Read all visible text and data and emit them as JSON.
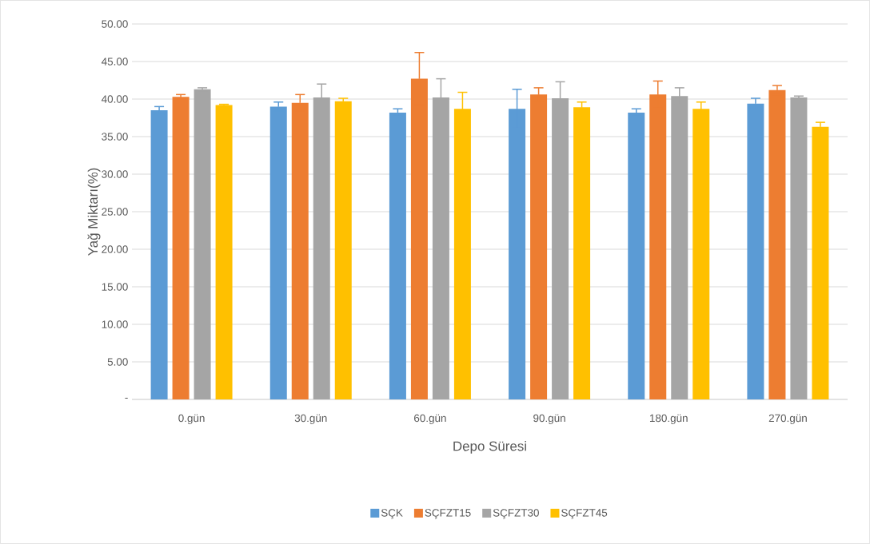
{
  "chart_data": {
    "type": "bar",
    "xlabel": "Depo Süresi",
    "ylabel": "Yağ Miktarı(%)",
    "categories": [
      "0.gün",
      "30.gün",
      "60.gün",
      "90.gün",
      "180.gün",
      "270.gün"
    ],
    "series": [
      {
        "name": "SÇK",
        "color": "#5b9bd5",
        "values": [
          38.5,
          39.0,
          38.2,
          38.7,
          38.2,
          39.4
        ],
        "errors": [
          0.5,
          0.6,
          0.5,
          2.6,
          0.5,
          0.7
        ]
      },
      {
        "name": "SÇFZT15",
        "color": "#ed7d31",
        "values": [
          40.3,
          39.5,
          42.7,
          40.6,
          40.6,
          41.2
        ],
        "errors": [
          0.3,
          1.1,
          3.5,
          0.9,
          1.8,
          0.6
        ]
      },
      {
        "name": "SÇFZT30",
        "color": "#a5a5a5",
        "values": [
          41.3,
          40.2,
          40.2,
          40.1,
          40.4,
          40.2
        ],
        "errors": [
          0.2,
          1.8,
          2.5,
          2.2,
          1.1,
          0.2
        ]
      },
      {
        "name": "SÇFZT45",
        "color": "#ffc000",
        "values": [
          39.2,
          39.7,
          38.7,
          38.9,
          38.7,
          36.3
        ],
        "errors": [
          0.1,
          0.4,
          2.2,
          0.7,
          0.9,
          0.6
        ]
      }
    ],
    "ylim": [
      0,
      50
    ],
    "yticks": [
      {
        "value": 0,
        "label": "-"
      },
      {
        "value": 5,
        "label": "5.00"
      },
      {
        "value": 10,
        "label": "10.00"
      },
      {
        "value": 15,
        "label": "15.00"
      },
      {
        "value": 20,
        "label": "20.00"
      },
      {
        "value": 25,
        "label": "25.00"
      },
      {
        "value": 30,
        "label": "30.00"
      },
      {
        "value": 35,
        "label": "35.00"
      },
      {
        "value": 40,
        "label": "40.00"
      },
      {
        "value": 45,
        "label": "45.00"
      },
      {
        "value": 50,
        "label": "50.00"
      }
    ],
    "grid": "y",
    "legend": "bottom"
  }
}
